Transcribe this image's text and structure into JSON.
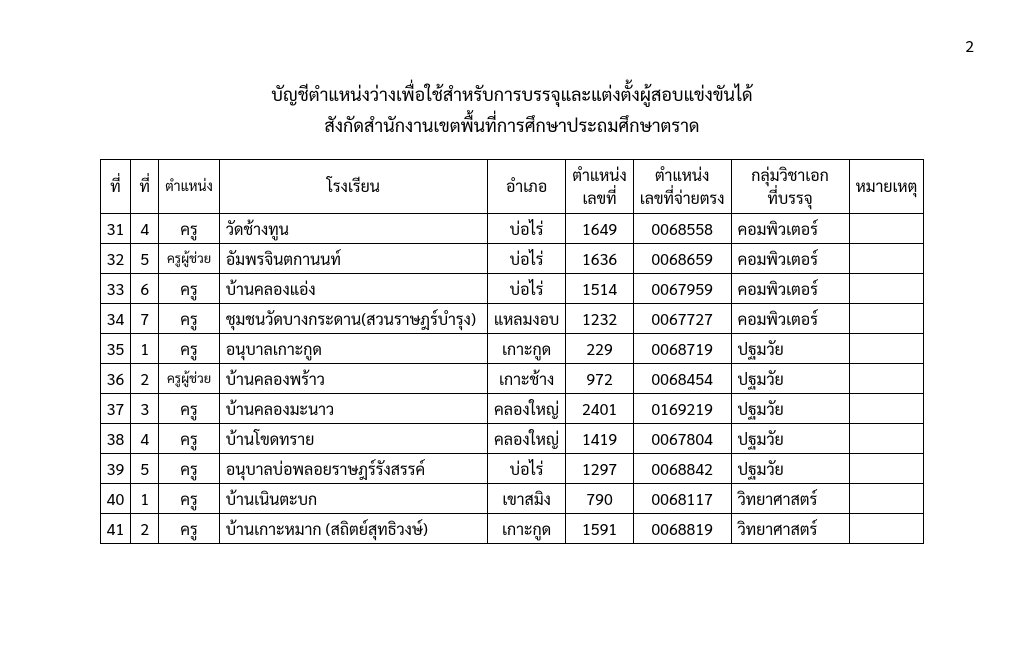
{
  "page_number": "2",
  "title_line1": "บัญชีตำแหน่งว่างเพื่อใช้สำหรับการบรรจุและแต่งตั้งผู้สอบแข่งขันได้",
  "title_line2": "สังกัดสำนักงานเขตพื้นที่การศึกษาประถมศึกษาตราด",
  "columns": {
    "no1": "ที่",
    "no2": "ที่",
    "position": "ตำแหน่ง",
    "school": "โรงเรียน",
    "district": "อำเภอ",
    "pos_no_l1": "ตำแหน่ง",
    "pos_no_l2": "เลขที่",
    "pay_no_l1": "ตำแหน่ง",
    "pay_no_l2": "เลขที่จ่ายตรง",
    "major_l1": "กลุ่มวิชาเอก",
    "major_l2": "ที่บรรจุ",
    "remark": "หมายเหตุ"
  },
  "rows": [
    {
      "n1": "31",
      "n2": "4",
      "pos": "ครู",
      "school": "วัดช้างทูน",
      "dist": "บ่อไร่",
      "c1": "1649",
      "c2": "0068558",
      "maj": "คอมพิวเตอร์",
      "rem": "",
      "grp": false
    },
    {
      "n1": "32",
      "n2": "5",
      "pos": "ครูผู้ช่วย",
      "school": "อัมพรจินตกานนท์",
      "dist": "บ่อไร่",
      "c1": "1636",
      "c2": "0068659",
      "maj": "คอมพิวเตอร์",
      "rem": "",
      "grp": false
    },
    {
      "n1": "33",
      "n2": "6",
      "pos": "ครู",
      "school": "บ้านคลองแอ่ง",
      "dist": "บ่อไร่",
      "c1": "1514",
      "c2": "0067959",
      "maj": "คอมพิวเตอร์",
      "rem": "",
      "grp": false
    },
    {
      "n1": "34",
      "n2": "7",
      "pos": "ครู",
      "school": "ชุมชนวัดบางกระดาน(สวนราษฎร์บำรุง)",
      "dist": "แหลมงอบ",
      "c1": "1232",
      "c2": "0067727",
      "maj": "คอมพิวเตอร์",
      "rem": "",
      "grp": false
    },
    {
      "n1": "35",
      "n2": "1",
      "pos": "ครู",
      "school": "อนุบาลเกาะกูด",
      "dist": "เกาะกูด",
      "c1": "229",
      "c2": "0068719",
      "maj": "ปฐมวัย",
      "rem": "",
      "grp": true
    },
    {
      "n1": "36",
      "n2": "2",
      "pos": "ครูผู้ช่วย",
      "school": "บ้านคลองพร้าว",
      "dist": "เกาะช้าง",
      "c1": "972",
      "c2": "0068454",
      "maj": "ปฐมวัย",
      "rem": "",
      "grp": false
    },
    {
      "n1": "37",
      "n2": "3",
      "pos": "ครู",
      "school": "บ้านคลองมะนาว",
      "dist": "คลองใหญ่",
      "c1": "2401",
      "c2": "0169219",
      "maj": "ปฐมวัย",
      "rem": "",
      "grp": false
    },
    {
      "n1": "38",
      "n2": "4",
      "pos": "ครู",
      "school": "บ้านโขดทราย",
      "dist": "คลองใหญ่",
      "c1": "1419",
      "c2": "0067804",
      "maj": "ปฐมวัย",
      "rem": "",
      "grp": false
    },
    {
      "n1": "39",
      "n2": "5",
      "pos": "ครู",
      "school": "อนุบาลบ่อพลอยราษฎร์รังสรรค์",
      "dist": "บ่อไร่",
      "c1": "1297",
      "c2": "0068842",
      "maj": "ปฐมวัย",
      "rem": "",
      "grp": false
    },
    {
      "n1": "40",
      "n2": "1",
      "pos": "ครู",
      "school": "บ้านเนินตะบก",
      "dist": "เขาสมิง",
      "c1": "790",
      "c2": "0068117",
      "maj": "วิทยาศาสตร์",
      "rem": "",
      "grp": true
    },
    {
      "n1": "41",
      "n2": "2",
      "pos": "ครู",
      "school": "บ้านเกาะหมาก (สถิตย์สุทธิวงษ์)",
      "dist": "เกาะกูด",
      "c1": "1591",
      "c2": "0068819",
      "maj": "วิทยาศาสตร์",
      "rem": "",
      "grp": false
    }
  ],
  "style": {
    "background_color": "#ffffff",
    "text_color": "#000000",
    "border_color": "#000000",
    "title_fontsize": 18,
    "body_fontsize": 16,
    "small_fontsize": 14
  }
}
